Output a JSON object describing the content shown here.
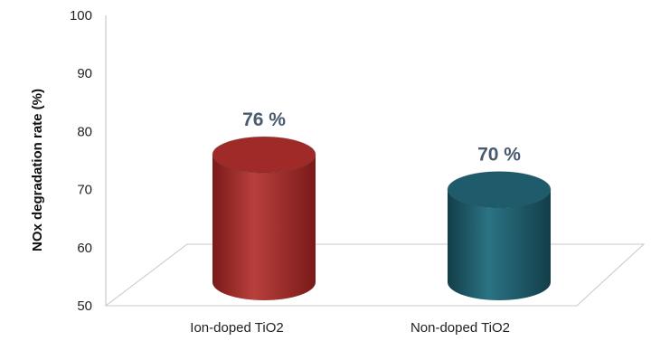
{
  "chart_data": {
    "type": "bar",
    "style": "3d-cylinder",
    "categories": [
      "Ion-doped TiO2",
      "Non-doped TiO2"
    ],
    "values": [
      76,
      70
    ],
    "data_labels": [
      "76 %",
      "70 %"
    ],
    "colors": [
      "#a02a28",
      "#1e5c6b"
    ],
    "ylabel": "NOx degradation rate (%)",
    "ylim": [
      50,
      100
    ],
    "yticks": [
      "50",
      "60",
      "70",
      "80",
      "90",
      "100"
    ],
    "grid": false,
    "legend": "none"
  }
}
